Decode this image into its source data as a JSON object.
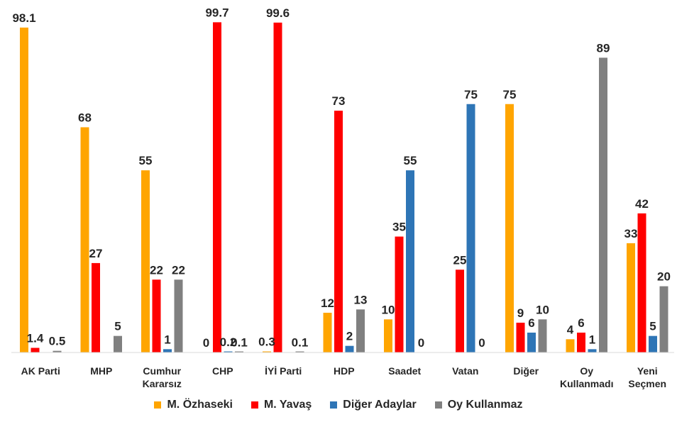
{
  "chart_data": {
    "type": "bar",
    "categories": [
      [
        "AK Parti"
      ],
      [
        "MHP"
      ],
      [
        "Cumhur",
        "Kararsız"
      ],
      [
        "CHP"
      ],
      [
        "İYİ Parti"
      ],
      [
        "HDP"
      ],
      [
        "Saadet"
      ],
      [
        "Vatan"
      ],
      [
        "Diğer"
      ],
      [
        "Oy",
        "Kullanmadı"
      ],
      [
        "Yeni",
        "Seçmen"
      ]
    ],
    "series": [
      {
        "name": "M. Özhaseki",
        "color": "#FFA500",
        "values": [
          98.1,
          68,
          55,
          0,
          0.3,
          12,
          10,
          null,
          75,
          4,
          33
        ],
        "labels": [
          "98.1",
          "68",
          "55",
          "0",
          "0.3",
          "12",
          "10",
          "",
          "75",
          "4",
          "33"
        ]
      },
      {
        "name": "M. Yavaş",
        "color": "#FF0000",
        "values": [
          1.4,
          27,
          22,
          99.7,
          99.6,
          73,
          35,
          25,
          9,
          6,
          42
        ],
        "labels": [
          "1.4",
          "27",
          "22",
          "99.7",
          "99.6",
          "73",
          "35",
          "25",
          "9",
          "6",
          "42"
        ]
      },
      {
        "name": "Diğer Adaylar",
        "color": "#2E75B6",
        "values": [
          null,
          null,
          1,
          0.2,
          null,
          2,
          55,
          75,
          6,
          1,
          5
        ],
        "labels": [
          "",
          "",
          "1",
          "0.2",
          "",
          "2",
          "55",
          "75",
          "6",
          "1",
          "5"
        ]
      },
      {
        "name": "Oy Kullanmaz",
        "color": "#808080",
        "values": [
          0.5,
          5,
          22,
          0.1,
          0.1,
          13,
          0,
          0,
          10,
          89,
          20
        ],
        "labels": [
          "0.5",
          "5",
          "22",
          "0.1",
          "0.1",
          "13",
          "0",
          "0",
          "10",
          "89",
          "20"
        ]
      }
    ],
    "ylim": [
      0,
      100
    ],
    "grid": false,
    "legend_position": "bottom"
  }
}
